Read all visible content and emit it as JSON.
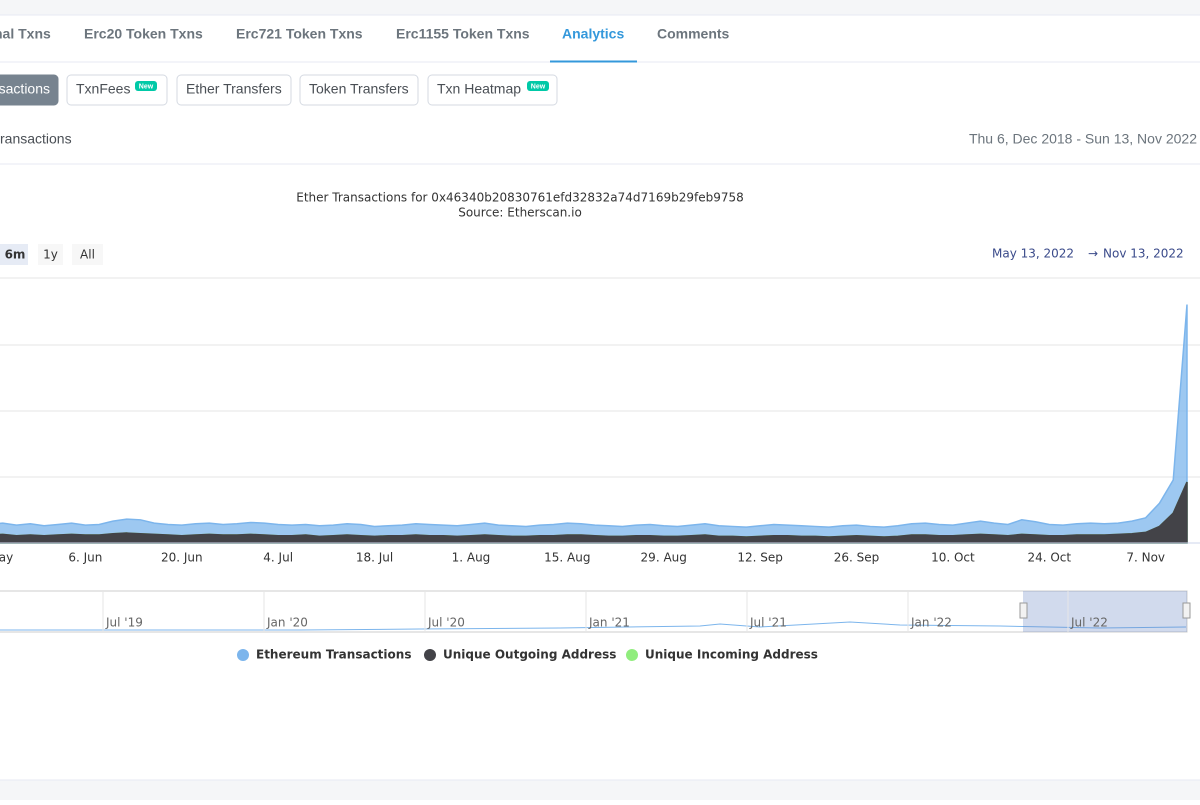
{
  "tabs": [
    "nal Txns",
    "Erc20 Token Txns",
    "Erc721 Token Txns",
    "Erc1155 Token Txns",
    "Analytics",
    "Comments"
  ],
  "subtabs": [
    {
      "label": "sactions"
    },
    {
      "label": "TxnFees",
      "badge": "New"
    },
    {
      "label": "Ether Transfers"
    },
    {
      "label": "Token Transfers"
    },
    {
      "label": "Txn Heatmap",
      "badge": "New"
    }
  ],
  "section_title": "ransactions",
  "date_range": "Thu 6, Dec 2018 - Sun 13, Nov 2022",
  "range_buttons": [
    "6m",
    "1y",
    "All"
  ],
  "range_from": "May 13, 2022",
  "range_arrow": "→",
  "range_to": "Nov 13, 2022",
  "navigator_labels": [
    "Jul '19",
    "Jan '20",
    "Jul '20",
    "Jan '21",
    "Jul '21",
    "Jan '22",
    "Jul '22"
  ],
  "chart_data": {
    "type": "area",
    "title": "Ether Transactions for 0x46340b20830761efd32832a74d7169b29feb9758",
    "subtitle": "Source: Etherscan.io",
    "categories": [
      "ay",
      null,
      null,
      null,
      null,
      null,
      null,
      "6. Jun",
      null,
      null,
      null,
      null,
      null,
      null,
      "20. Jun",
      null,
      null,
      null,
      null,
      null,
      null,
      "4. Jul",
      null,
      null,
      null,
      null,
      null,
      null,
      "18. Jul",
      null,
      null,
      null,
      null,
      null,
      null,
      "1. Aug",
      null,
      null,
      null,
      null,
      null,
      null,
      "15. Aug",
      null,
      null,
      null,
      null,
      null,
      null,
      "29. Aug",
      null,
      null,
      null,
      null,
      null,
      null,
      "12. Sep",
      null,
      null,
      null,
      null,
      null,
      null,
      "26. Sep",
      null,
      null,
      null,
      null,
      null,
      null,
      "10. Oct",
      null,
      null,
      null,
      null,
      null,
      null,
      "24. Oct",
      null,
      null,
      null,
      null,
      null,
      null,
      "7. Nov",
      null,
      null,
      null
    ],
    "ylim": [
      0,
      4
    ],
    "grid": true,
    "series": [
      {
        "name": "Ethereum Transactions",
        "color": "#7cb5ec",
        "values": [
          0.28,
          0.3,
          0.27,
          0.29,
          0.26,
          0.28,
          0.3,
          0.27,
          0.28,
          0.33,
          0.36,
          0.35,
          0.3,
          0.28,
          0.27,
          0.29,
          0.3,
          0.28,
          0.29,
          0.31,
          0.3,
          0.28,
          0.27,
          0.28,
          0.26,
          0.27,
          0.29,
          0.28,
          0.25,
          0.26,
          0.27,
          0.29,
          0.28,
          0.27,
          0.26,
          0.28,
          0.3,
          0.27,
          0.26,
          0.25,
          0.27,
          0.28,
          0.3,
          0.29,
          0.27,
          0.26,
          0.25,
          0.27,
          0.28,
          0.26,
          0.25,
          0.27,
          0.29,
          0.26,
          0.25,
          0.24,
          0.26,
          0.28,
          0.27,
          0.26,
          0.25,
          0.24,
          0.26,
          0.27,
          0.25,
          0.24,
          0.26,
          0.29,
          0.3,
          0.28,
          0.27,
          0.3,
          0.33,
          0.3,
          0.28,
          0.35,
          0.32,
          0.28,
          0.27,
          0.29,
          0.3,
          0.29,
          0.3,
          0.33,
          0.38,
          0.6,
          0.95,
          3.6
        ]
      },
      {
        "name": "Unique Outgoing Address",
        "color": "#434348",
        "values": [
          0.12,
          0.13,
          0.11,
          0.12,
          0.11,
          0.12,
          0.13,
          0.12,
          0.12,
          0.14,
          0.15,
          0.14,
          0.13,
          0.12,
          0.11,
          0.12,
          0.13,
          0.12,
          0.12,
          0.13,
          0.12,
          0.11,
          0.11,
          0.12,
          0.1,
          0.11,
          0.12,
          0.11,
          0.1,
          0.11,
          0.11,
          0.12,
          0.11,
          0.11,
          0.1,
          0.11,
          0.12,
          0.11,
          0.1,
          0.1,
          0.11,
          0.11,
          0.12,
          0.12,
          0.11,
          0.1,
          0.1,
          0.11,
          0.11,
          0.1,
          0.1,
          0.11,
          0.12,
          0.1,
          0.1,
          0.09,
          0.1,
          0.11,
          0.11,
          0.1,
          0.1,
          0.09,
          0.1,
          0.11,
          0.1,
          0.09,
          0.1,
          0.12,
          0.12,
          0.11,
          0.11,
          0.12,
          0.13,
          0.12,
          0.11,
          0.13,
          0.12,
          0.11,
          0.11,
          0.12,
          0.12,
          0.12,
          0.13,
          0.14,
          0.16,
          0.25,
          0.45,
          0.92
        ]
      },
      {
        "name": "Unique Incoming Address",
        "color": "#90ed7d",
        "values": [
          0.12,
          0.13,
          0.11,
          0.12,
          0.11,
          0.12,
          0.13,
          0.12,
          0.12,
          0.14,
          0.15,
          0.14,
          0.13,
          0.12,
          0.11,
          0.12,
          0.13,
          0.12,
          0.12,
          0.13,
          0.12,
          0.11,
          0.11,
          0.12,
          0.1,
          0.11,
          0.12,
          0.11,
          0.1,
          0.11,
          0.11,
          0.12,
          0.11,
          0.11,
          0.1,
          0.11,
          0.12,
          0.11,
          0.1,
          0.1,
          0.11,
          0.11,
          0.12,
          0.12,
          0.11,
          0.1,
          0.1,
          0.11,
          0.11,
          0.1,
          0.1,
          0.11,
          0.12,
          0.1,
          0.1,
          0.09,
          0.1,
          0.11,
          0.11,
          0.1,
          0.1,
          0.09,
          0.1,
          0.11,
          0.1,
          0.09,
          0.1,
          0.12,
          0.12,
          0.11,
          0.11,
          0.12,
          0.13,
          0.12,
          0.11,
          0.13,
          0.12,
          0.11,
          0.11,
          0.12,
          0.12,
          0.12,
          0.13,
          0.14,
          0.16,
          0.25,
          0.45,
          0.92
        ]
      }
    ]
  }
}
